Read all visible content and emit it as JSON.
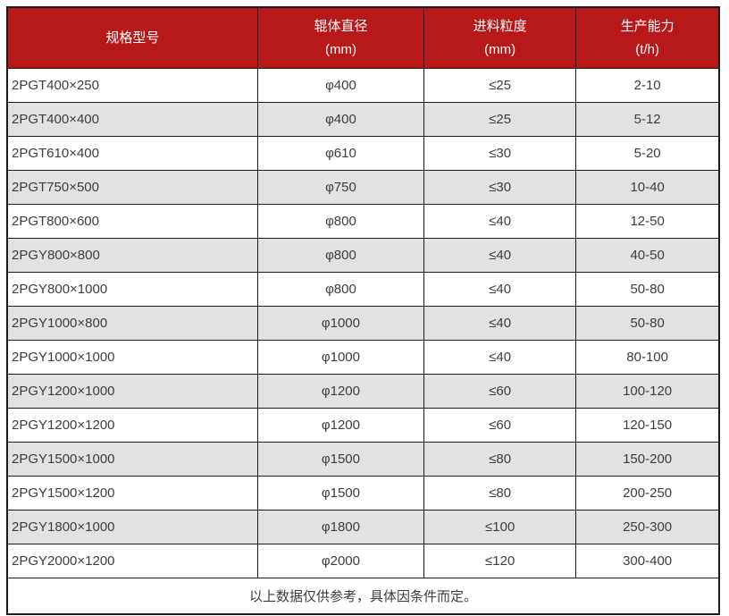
{
  "colors": {
    "header_bg": "#b7191b",
    "header_text": "#ffffff",
    "row_bg": "#ffffff",
    "row_alt_bg": "#e2e2e2",
    "grid_border": "#1c1c1c",
    "cell_text": "#3d3d3d"
  },
  "chart_data": {
    "type": "table",
    "title": "",
    "columns": [
      {
        "title": "规格型号",
        "unit": ""
      },
      {
        "title": "辊体直径",
        "unit": "(mm)"
      },
      {
        "title": "进料粒度",
        "unit": "(mm)"
      },
      {
        "title": "生产能力",
        "unit": "(t/h)"
      }
    ],
    "rows": [
      [
        "2PGT400×250",
        "φ400",
        "≤25",
        "2-10"
      ],
      [
        "2PGT400×400",
        "φ400",
        "≤25",
        "5-12"
      ],
      [
        "2PGT610×400",
        "φ610",
        "≤30",
        "5-20"
      ],
      [
        "2PGT750×500",
        "φ750",
        "≤30",
        "10-40"
      ],
      [
        "2PGT800×600",
        "φ800",
        "≤40",
        "12-50"
      ],
      [
        "2PGY800×800",
        "φ800",
        "≤40",
        "40-50"
      ],
      [
        "2PGY800×1000",
        "φ800",
        "≤40",
        "50-80"
      ],
      [
        "2PGY1000×800",
        "φ1000",
        "≤40",
        "50-80"
      ],
      [
        "2PGY1000×1000",
        "φ1000",
        "≤40",
        "80-100"
      ],
      [
        "2PGY1200×1000",
        "φ1200",
        "≤60",
        "100-120"
      ],
      [
        "2PGY1200×1200",
        "φ1200",
        "≤60",
        "120-150"
      ],
      [
        "2PGY1500×1000",
        "φ1500",
        "≤80",
        "150-200"
      ],
      [
        "2PGY1500×1200",
        "φ1500",
        "≤80",
        "200-250"
      ],
      [
        "2PGY1800×1000",
        "φ1800",
        "≤100",
        "250-300"
      ],
      [
        "2PGY2000×1200",
        "φ2000",
        "≤120",
        "300-400"
      ]
    ],
    "footnote": "以上数据仅供参考，具体因条件而定。",
    "layout": {
      "grid": "on",
      "stripe_even_rows": true,
      "first_column_align": "left",
      "other_columns_align": "center"
    }
  }
}
